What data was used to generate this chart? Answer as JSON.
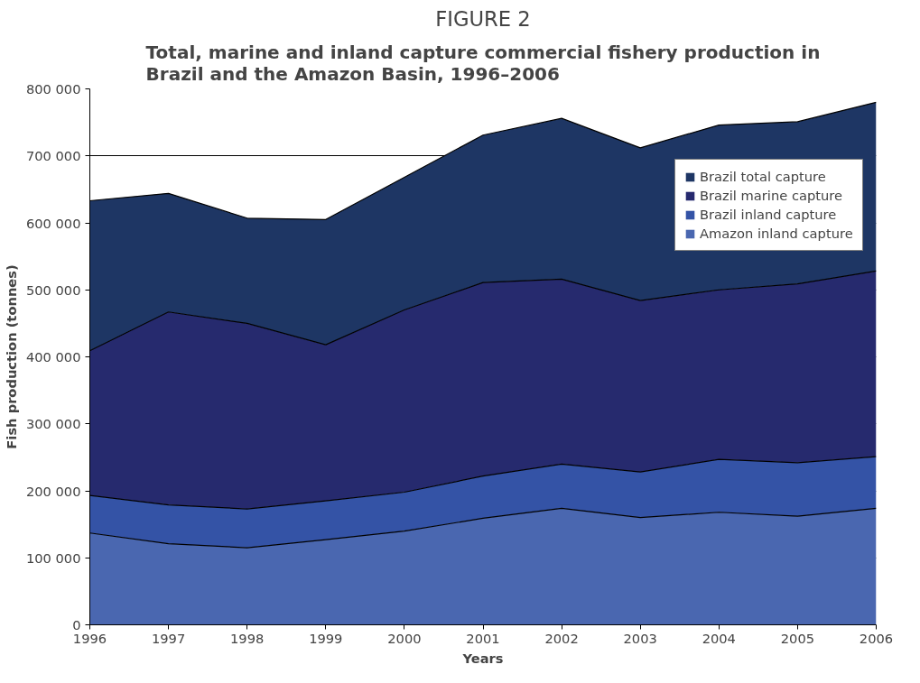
{
  "chart_data": {
    "type": "area",
    "title": "FIGURE 2",
    "subtitle": "Total, marine and inland capture commercial fishery production in Brazil and the Amazon Basin, 1996–2006",
    "xlabel": "Years",
    "ylabel": "Fish production (tonnes)",
    "x": [
      1996,
      1997,
      1998,
      1999,
      2000,
      2001,
      2002,
      2003,
      2004,
      2005,
      2006
    ],
    "series": [
      {
        "name": "Brazil total capture",
        "color": "#1e3664",
        "values": [
          633000,
          644000,
          607000,
          605000,
          668000,
          731000,
          756000,
          712000,
          746000,
          751000,
          780000
        ]
      },
      {
        "name": "Brazil marine capture",
        "color": "#262a6e",
        "values": [
          409000,
          467000,
          450000,
          418000,
          470000,
          511000,
          516000,
          484000,
          500000,
          509000,
          528000
        ]
      },
      {
        "name": "Brazil inland capture",
        "color": "#3453a6",
        "values": [
          193000,
          179000,
          173000,
          185000,
          198000,
          222000,
          240000,
          228000,
          247000,
          242000,
          251000
        ]
      },
      {
        "name": "Amazon inland capture",
        "color": "#4a67b0",
        "values": [
          137000,
          121000,
          115000,
          127000,
          140000,
          159000,
          174000,
          160000,
          168000,
          162000,
          174000
        ]
      }
    ],
    "xlim": [
      1996,
      2006
    ],
    "xticks": [
      1996,
      1997,
      1998,
      1999,
      2000,
      2001,
      2002,
      2003,
      2004,
      2005,
      2006
    ],
    "ylim": [
      0,
      800000
    ],
    "yticks": [
      0,
      {
        "value": 100000,
        "label": "100 000"
      },
      {
        "value": 200000,
        "label": "200 000"
      },
      {
        "value": 300000,
        "label": "300 000"
      },
      {
        "value": 400000,
        "label": "400 000"
      },
      {
        "value": 500000,
        "label": "500 000"
      },
      {
        "value": 600000,
        "label": "600 000"
      },
      {
        "value": 700000,
        "label": "700 000"
      },
      {
        "value": 800000,
        "label": "800 000"
      }
    ],
    "grid": "y",
    "legend": "top right"
  }
}
